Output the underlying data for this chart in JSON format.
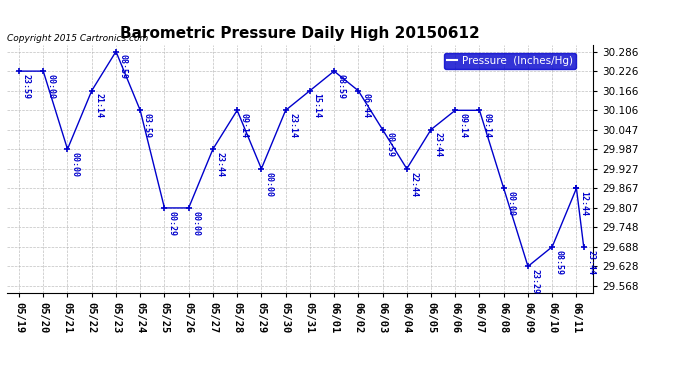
{
  "title": "Barometric Pressure Daily High 20150612",
  "ylabel": "Pressure  (Inches/Hg)",
  "copyright": "Copyright 2015 Cartronics.com",
  "background_color": "#ffffff",
  "line_color": "#0000cc",
  "ylim": [
    29.548,
    30.306
  ],
  "yticks": [
    29.568,
    29.628,
    29.688,
    29.748,
    29.807,
    29.867,
    29.927,
    29.987,
    30.047,
    30.106,
    30.166,
    30.226,
    30.286
  ],
  "dates": [
    "05/19",
    "05/20",
    "05/21",
    "05/22",
    "05/23",
    "05/24",
    "05/25",
    "05/26",
    "05/27",
    "05/28",
    "05/29",
    "05/30",
    "05/31",
    "06/01",
    "06/02",
    "06/03",
    "06/04",
    "06/05",
    "06/06",
    "06/07",
    "06/08",
    "06/09",
    "06/10",
    "06/11"
  ],
  "point_data": [
    [
      0,
      30.226,
      "23:59"
    ],
    [
      1,
      30.226,
      "00:00"
    ],
    [
      2,
      29.987,
      "00:00"
    ],
    [
      3,
      30.166,
      "21:14"
    ],
    [
      4,
      30.286,
      "08:59"
    ],
    [
      5,
      30.106,
      "03:59"
    ],
    [
      6,
      29.807,
      "00:29"
    ],
    [
      7,
      29.807,
      "00:00"
    ],
    [
      8,
      29.987,
      "23:44"
    ],
    [
      9,
      30.106,
      "09:14"
    ],
    [
      10,
      29.927,
      "00:00"
    ],
    [
      11,
      30.106,
      "23:14"
    ],
    [
      12,
      30.166,
      "15:14"
    ],
    [
      13,
      30.226,
      "08:59"
    ],
    [
      14,
      30.166,
      "06:44"
    ],
    [
      15,
      30.047,
      "00:59"
    ],
    [
      16,
      29.927,
      "22:44"
    ],
    [
      17,
      30.047,
      "23:44"
    ],
    [
      18,
      30.106,
      "09:14"
    ],
    [
      19,
      30.106,
      "09:14"
    ],
    [
      20,
      29.867,
      "00:00"
    ],
    [
      21,
      29.628,
      "23:29"
    ],
    [
      22,
      29.688,
      "08:59"
    ],
    [
      23,
      29.867,
      "12:44"
    ],
    [
      23,
      29.688,
      "23:44"
    ]
  ]
}
